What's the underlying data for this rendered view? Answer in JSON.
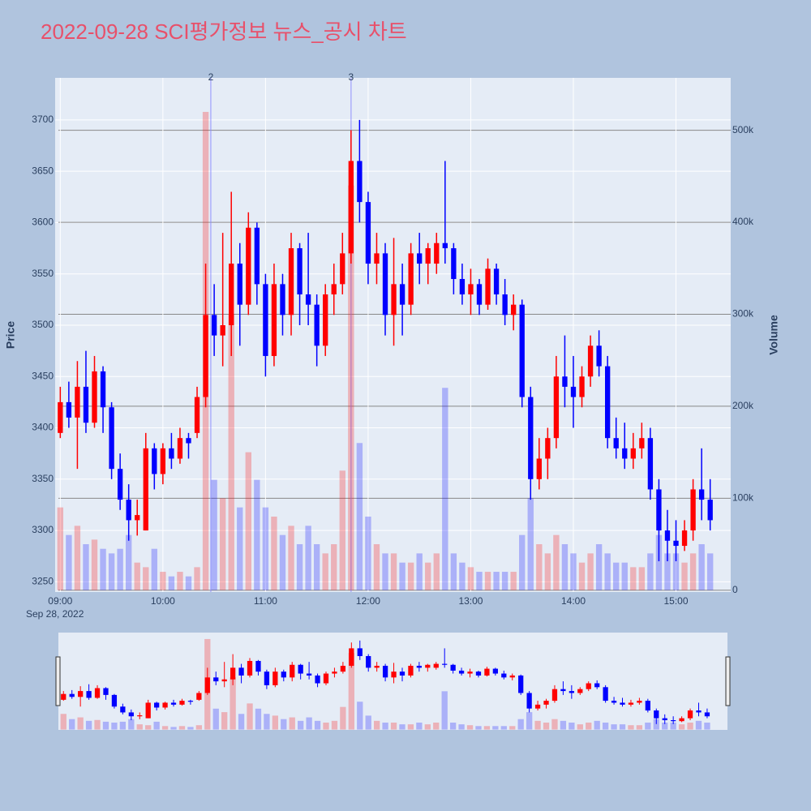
{
  "chart_data": {
    "type": "candlestick",
    "title": "2022-09-28 SCI평가정보 뉴스_공시 차트",
    "y_label": "Price",
    "y2_label": "Volume",
    "x_date_label": "Sep 28, 2022",
    "increasing_color": "#ff0000",
    "decreasing_color": "#0000ff",
    "x": [
      "09:00",
      "09:05",
      "09:10",
      "09:15",
      "09:20",
      "09:25",
      "09:30",
      "09:35",
      "09:40",
      "09:45",
      "09:50",
      "09:55",
      "10:00",
      "10:05",
      "10:10",
      "10:15",
      "10:20",
      "10:25",
      "10:30",
      "10:35",
      "10:40",
      "10:45",
      "10:50",
      "10:55",
      "11:00",
      "11:05",
      "11:10",
      "11:15",
      "11:20",
      "11:25",
      "11:30",
      "11:35",
      "11:40",
      "11:45",
      "11:50",
      "11:55",
      "12:00",
      "12:05",
      "12:10",
      "12:15",
      "12:20",
      "12:25",
      "12:30",
      "12:35",
      "12:40",
      "12:45",
      "12:50",
      "12:55",
      "13:00",
      "13:05",
      "13:10",
      "13:15",
      "13:20",
      "13:25",
      "13:30",
      "13:35",
      "13:40",
      "13:45",
      "13:50",
      "13:55",
      "14:00",
      "14:05",
      "14:10",
      "14:15",
      "14:20",
      "14:25",
      "14:30",
      "14:35",
      "14:40",
      "14:45",
      "14:50",
      "14:55",
      "15:00",
      "15:05",
      "15:10",
      "15:15",
      "15:20"
    ],
    "open": [
      3395,
      3425,
      3410,
      3440,
      3405,
      3455,
      3420,
      3360,
      3330,
      3310,
      3300,
      3380,
      3355,
      3380,
      3370,
      3390,
      3395,
      3430,
      3510,
      3490,
      3500,
      3560,
      3520,
      3595,
      3540,
      3470,
      3540,
      3510,
      3575,
      3530,
      3520,
      3480,
      3530,
      3540,
      3570,
      3660,
      3620,
      3560,
      3570,
      3510,
      3540,
      3520,
      3570,
      3560,
      3560,
      3580,
      3575,
      3545,
      3530,
      3540,
      3520,
      3555,
      3530,
      3510,
      3520,
      3430,
      3350,
      3370,
      3390,
      3450,
      3440,
      3430,
      3450,
      3480,
      3460,
      3390,
      3380,
      3370,
      3380,
      3390,
      3340,
      3300,
      3290,
      3285,
      3300,
      3340,
      3330
    ],
    "high": [
      3440,
      3445,
      3465,
      3475,
      3470,
      3460,
      3425,
      3375,
      3345,
      3330,
      3395,
      3385,
      3385,
      3395,
      3400,
      3395,
      3440,
      3560,
      3540,
      3590,
      3630,
      3580,
      3610,
      3600,
      3550,
      3560,
      3550,
      3590,
      3580,
      3590,
      3530,
      3540,
      3560,
      3590,
      3690,
      3700,
      3630,
      3590,
      3580,
      3585,
      3560,
      3580,
      3590,
      3580,
      3590,
      3660,
      3580,
      3560,
      3555,
      3545,
      3565,
      3560,
      3545,
      3530,
      3525,
      3440,
      3390,
      3400,
      3470,
      3490,
      3470,
      3460,
      3490,
      3495,
      3470,
      3410,
      3405,
      3395,
      3405,
      3400,
      3350,
      3320,
      3310,
      3310,
      3350,
      3380,
      3350
    ],
    "low": [
      3390,
      3400,
      3360,
      3395,
      3400,
      3395,
      3350,
      3320,
      3290,
      3295,
      3300,
      3340,
      3345,
      3360,
      3365,
      3370,
      3390,
      3420,
      3470,
      3460,
      3470,
      3480,
      3510,
      3520,
      3450,
      3460,
      3490,
      3490,
      3500,
      3500,
      3460,
      3470,
      3510,
      3530,
      3560,
      3600,
      3540,
      3540,
      3490,
      3480,
      3490,
      3510,
      3540,
      3540,
      3550,
      3560,
      3530,
      3520,
      3510,
      3510,
      3515,
      3520,
      3500,
      3495,
      3420,
      3330,
      3340,
      3350,
      3380,
      3420,
      3400,
      3420,
      3440,
      3450,
      3380,
      3370,
      3360,
      3360,
      3370,
      3330,
      3270,
      3270,
      3270,
      3280,
      3290,
      3310,
      3300
    ],
    "close": [
      3425,
      3410,
      3440,
      3405,
      3455,
      3420,
      3360,
      3330,
      3310,
      3315,
      3380,
      3355,
      3380,
      3370,
      3390,
      3385,
      3430,
      3510,
      3490,
      3500,
      3560,
      3520,
      3595,
      3540,
      3470,
      3540,
      3510,
      3575,
      3530,
      3520,
      3480,
      3530,
      3540,
      3570,
      3660,
      3620,
      3560,
      3570,
      3510,
      3540,
      3520,
      3570,
      3560,
      3575,
      3580,
      3575,
      3545,
      3530,
      3540,
      3520,
      3555,
      3530,
      3510,
      3520,
      3430,
      3350,
      3370,
      3390,
      3450,
      3440,
      3430,
      3450,
      3480,
      3460,
      3390,
      3380,
      3370,
      3380,
      3390,
      3340,
      3300,
      3290,
      3285,
      3300,
      3340,
      3330,
      3310
    ],
    "volume": [
      90000,
      60000,
      70000,
      50000,
      55000,
      45000,
      40000,
      45000,
      60000,
      30000,
      25000,
      45000,
      20000,
      15000,
      20000,
      15000,
      25000,
      520000,
      120000,
      100000,
      300000,
      90000,
      150000,
      120000,
      90000,
      80000,
      60000,
      70000,
      50000,
      70000,
      50000,
      40000,
      50000,
      130000,
      440000,
      160000,
      80000,
      50000,
      40000,
      40000,
      30000,
      30000,
      40000,
      30000,
      40000,
      220000,
      40000,
      30000,
      25000,
      20000,
      20000,
      20000,
      20000,
      20000,
      60000,
      100000,
      50000,
      40000,
      60000,
      50000,
      40000,
      30000,
      40000,
      50000,
      40000,
      30000,
      30000,
      25000,
      25000,
      40000,
      60000,
      40000,
      40000,
      30000,
      40000,
      50000,
      40000
    ],
    "xlim": [
      "08:57",
      "15:32"
    ],
    "xticks": [
      "09:00",
      "10:00",
      "11:00",
      "12:00",
      "13:00",
      "14:00",
      "15:00"
    ],
    "ylim": [
      3240,
      3741
    ],
    "yticks": [
      3250,
      3300,
      3350,
      3400,
      3450,
      3500,
      3550,
      3600,
      3650,
      3700
    ],
    "y2lim": [
      -2000,
      557000
    ],
    "y2ticks": [
      0,
      {
        "value": 100000,
        "label": "100k"
      },
      {
        "value": 200000,
        "label": "200k"
      },
      {
        "value": 300000,
        "label": "300k"
      },
      {
        "value": 400000,
        "label": "400k"
      },
      {
        "value": 500000,
        "label": "500k"
      }
    ],
    "annotations": [
      {
        "x": "10:28",
        "text": "2"
      },
      {
        "x": "11:50",
        "text": "3"
      }
    ],
    "grid": true
  }
}
